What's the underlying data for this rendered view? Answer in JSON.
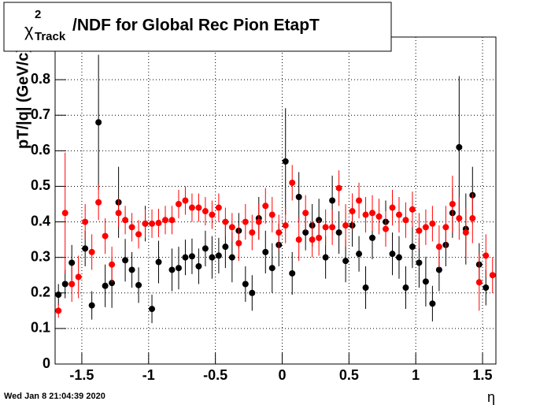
{
  "chart_data": {
    "type": "scatter",
    "title_symbol": "χ",
    "title_sup": "2",
    "title_sub": "Track",
    "title_rest": "/NDF for Global Rec Pion EtapT",
    "y_label": "pT/|q| (GeV/c)",
    "x_label": "η",
    "timestamp": "Wed Jan  8 21:04:39 2020",
    "xlim": [
      -1.7,
      1.6
    ],
    "ylim": [
      0,
      0.92
    ],
    "xticks": [
      -1.5,
      -1,
      -0.5,
      0,
      0.5,
      1,
      1.5
    ],
    "yticks": [
      0,
      0.1,
      0.2,
      0.3,
      0.4,
      0.5,
      0.6,
      0.7,
      0.8
    ],
    "grid": true,
    "x": [
      -1.675,
      -1.625,
      -1.575,
      -1.525,
      -1.475,
      -1.425,
      -1.375,
      -1.325,
      -1.275,
      -1.225,
      -1.175,
      -1.125,
      -1.075,
      -1.025,
      -0.975,
      -0.925,
      -0.875,
      -0.825,
      -0.775,
      -0.725,
      -0.675,
      -0.625,
      -0.575,
      -0.525,
      -0.475,
      -0.425,
      -0.375,
      -0.325,
      -0.275,
      -0.225,
      -0.175,
      -0.125,
      -0.075,
      -0.025,
      0.025,
      0.075,
      0.125,
      0.175,
      0.225,
      0.275,
      0.325,
      0.375,
      0.425,
      0.475,
      0.525,
      0.575,
      0.625,
      0.675,
      0.725,
      0.775,
      0.825,
      0.875,
      0.925,
      0.975,
      1.025,
      1.075,
      1.125,
      1.175,
      1.225,
      1.275,
      1.325,
      1.375,
      1.425,
      1.475,
      1.525,
      1.575
    ],
    "series": [
      {
        "color": "#000000",
        "values": [
          0.195,
          0.225,
          0.285,
          null,
          0.325,
          0.165,
          0.68,
          0.22,
          0.228,
          0.455,
          0.292,
          0.265,
          0.222,
          0.395,
          0.155,
          0.287,
          null,
          0.265,
          0.27,
          0.3,
          0.303,
          0.275,
          0.325,
          0.3,
          0.305,
          0.33,
          0.3,
          0.375,
          0.225,
          0.2,
          0.41,
          0.315,
          0.27,
          0.335,
          0.57,
          0.255,
          0.47,
          0.37,
          0.39,
          0.405,
          0.3,
          0.46,
          0.37,
          0.29,
          0.39,
          0.31,
          0.215,
          0.355,
          null,
          0.4,
          0.31,
          0.3,
          0.215,
          0.33,
          0.285,
          0.232,
          0.17,
          0.265,
          0.335,
          0.425,
          0.61,
          0.38,
          0.475,
          0.28,
          0.215,
          null
        ],
        "errors": [
          0.03,
          0.04,
          0.05,
          null,
          0.05,
          0.04,
          0.19,
          0.06,
          0.07,
          0.1,
          0.06,
          0.05,
          0.05,
          0.05,
          0.04,
          0.06,
          null,
          0.06,
          0.06,
          0.05,
          0.05,
          0.05,
          0.05,
          0.06,
          0.05,
          0.06,
          0.07,
          0.05,
          0.05,
          0.05,
          0.06,
          0.06,
          0.07,
          0.06,
          0.15,
          0.06,
          0.07,
          0.05,
          0.06,
          0.06,
          0.06,
          0.07,
          0.06,
          0.06,
          0.06,
          0.05,
          0.06,
          0.06,
          null,
          0.06,
          0.06,
          0.06,
          0.06,
          0.06,
          0.07,
          0.07,
          0.05,
          0.06,
          0.06,
          0.07,
          0.2,
          0.1,
          0.08,
          0.06,
          0.05,
          null
        ]
      },
      {
        "color": "#ff0000",
        "values": [
          0.15,
          0.425,
          0.225,
          0.245,
          0.4,
          0.315,
          0.455,
          0.36,
          0.28,
          0.425,
          0.405,
          0.385,
          0.365,
          0.395,
          0.395,
          0.397,
          0.405,
          0.405,
          0.45,
          0.46,
          0.44,
          0.44,
          0.43,
          0.42,
          0.44,
          0.4,
          0.385,
          0.34,
          0.4,
          0.37,
          0.4,
          0.445,
          0.42,
          0.37,
          0.39,
          0.51,
          0.35,
          0.425,
          0.35,
          0.355,
          0.385,
          0.385,
          0.495,
          0.39,
          0.43,
          0.46,
          0.42,
          0.425,
          0.415,
          0.38,
          0.44,
          0.42,
          0.405,
          0.435,
          0.375,
          0.385,
          0.395,
          0.33,
          0.385,
          0.45,
          0.41,
          0.37,
          0.41,
          0.23,
          0.305,
          0.25
        ],
        "errors": [
          0.02,
          0.17,
          0.05,
          0.06,
          0.05,
          0.05,
          0.05,
          0.05,
          0.05,
          0.04,
          0.04,
          0.04,
          0.04,
          0.04,
          0.04,
          0.04,
          0.04,
          0.04,
          0.04,
          0.04,
          0.04,
          0.04,
          0.04,
          0.04,
          0.04,
          0.04,
          0.04,
          0.05,
          0.05,
          0.05,
          0.05,
          0.05,
          0.05,
          0.05,
          0.05,
          0.05,
          0.06,
          0.05,
          0.05,
          0.05,
          0.05,
          0.05,
          0.05,
          0.06,
          0.05,
          0.05,
          0.05,
          0.05,
          0.05,
          0.05,
          0.05,
          0.05,
          0.05,
          0.05,
          0.05,
          0.05,
          0.05,
          0.06,
          0.06,
          0.08,
          0.06,
          0.07,
          0.07,
          0.08,
          0.06,
          0.05
        ]
      }
    ]
  }
}
